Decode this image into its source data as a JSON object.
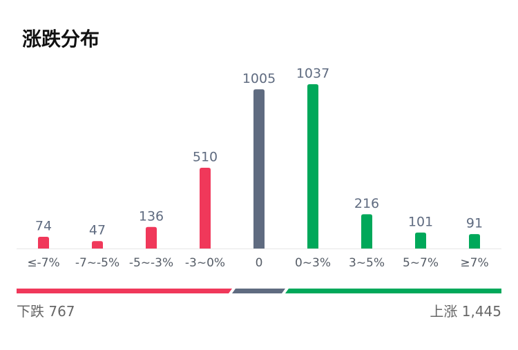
{
  "chart_data": {
    "type": "bar",
    "title": "涨跌分布",
    "categories": [
      "≤-7%",
      "-7~-5%",
      "-5~-3%",
      "-3~0%",
      "0",
      "0~3%",
      "3~5%",
      "5~7%",
      "≥7%"
    ],
    "values": [
      74,
      47,
      136,
      510,
      1005,
      1037,
      216,
      101,
      91
    ],
    "colors": [
      "#f0385a",
      "#f0385a",
      "#f0385a",
      "#f0385a",
      "#5f6b80",
      "#00a85a",
      "#00a85a",
      "#00a85a",
      "#00a85a"
    ]
  },
  "summary": {
    "down_label": "下跌",
    "down_count": 767,
    "up_label": "上涨",
    "up_count": {
      "value": 1445,
      "label": "1,445"
    }
  }
}
